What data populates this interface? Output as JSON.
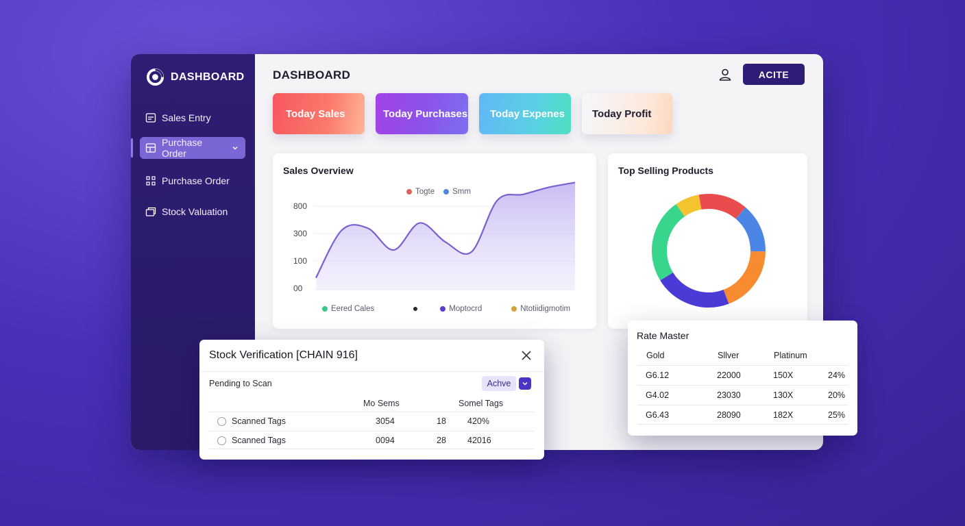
{
  "sidebar": {
    "brand": "DASHBOARD",
    "items": [
      {
        "label": "Sales Entry",
        "icon": "sales-entry-icon"
      },
      {
        "label": "Purchase Order",
        "icon": "purchase-order-icon",
        "active": true
      },
      {
        "label": "Purchase Order",
        "icon": "purchase-grid-icon"
      },
      {
        "label": "Stock Valuation",
        "icon": "stock-valuation-icon"
      }
    ]
  },
  "header": {
    "title": "DASHBOARD",
    "action_label": "ACITE"
  },
  "kpis": [
    "Today Sales",
    "Today Purchases",
    "Today Expenes",
    "Today Profit"
  ],
  "sales_overview": {
    "title": "Sales Overview",
    "top_legend": [
      {
        "label": "Togte",
        "color": "#e0605a"
      },
      {
        "label": "Smm",
        "color": "#4f86e0"
      }
    ],
    "y_ticks": [
      "800",
      "300",
      "100",
      "00"
    ],
    "bottom_legend": [
      {
        "label": "Eered Cales",
        "color": "#3cc88a"
      },
      {
        "label": "",
        "color": "#2a2a2a"
      },
      {
        "label": "Moptocrd",
        "color": "#5a3fc8"
      },
      {
        "label": "Ntotiidigmotim",
        "color": "#d6a23a"
      }
    ]
  },
  "chart_data": {
    "type": "area",
    "title": "Sales Overview",
    "y_ticks": [
      "800",
      "300",
      "100",
      "00"
    ],
    "x": [
      0,
      1,
      2,
      3,
      4,
      5,
      6,
      7,
      8,
      9,
      10
    ],
    "values": [
      30,
      150,
      155,
      100,
      168,
      120,
      95,
      225,
      240,
      258,
      270
    ],
    "color": "#7a5fd0"
  },
  "top_selling": {
    "title": "Top Selling Products",
    "segments": [
      {
        "value": 14,
        "color": "#e84c4c"
      },
      {
        "value": 14,
        "color": "#4b86e6"
      },
      {
        "value": 19,
        "color": "#f78b2f"
      },
      {
        "value": 22,
        "color": "#4a3ad6"
      },
      {
        "value": 24,
        "color": "#38d58c"
      },
      {
        "value": 7,
        "color": "#f4c430"
      }
    ]
  },
  "stock_modal": {
    "title": "Stock Verification [CHAIN 916]",
    "pending_label": "Pending to Scan",
    "status_label": "Achve",
    "columns": [
      "Mo Sems",
      "Somel Tags"
    ],
    "rows": [
      {
        "label": "Scanned Tags",
        "a": "3054",
        "b": "18",
        "c": "420%"
      },
      {
        "label": "Scanned Tags",
        "a": "0094",
        "b": "28",
        "c": "42016"
      }
    ]
  },
  "rate_master": {
    "title": "Rate Master",
    "columns": [
      "Gold",
      "Sllver",
      "Platinum"
    ],
    "rows": [
      [
        "G6.12",
        "22000",
        "150X",
        "24%"
      ],
      [
        "G4.02",
        "23030",
        "130X",
        "20%"
      ],
      [
        "G6.43",
        "28090",
        "182X",
        "25%"
      ]
    ]
  }
}
